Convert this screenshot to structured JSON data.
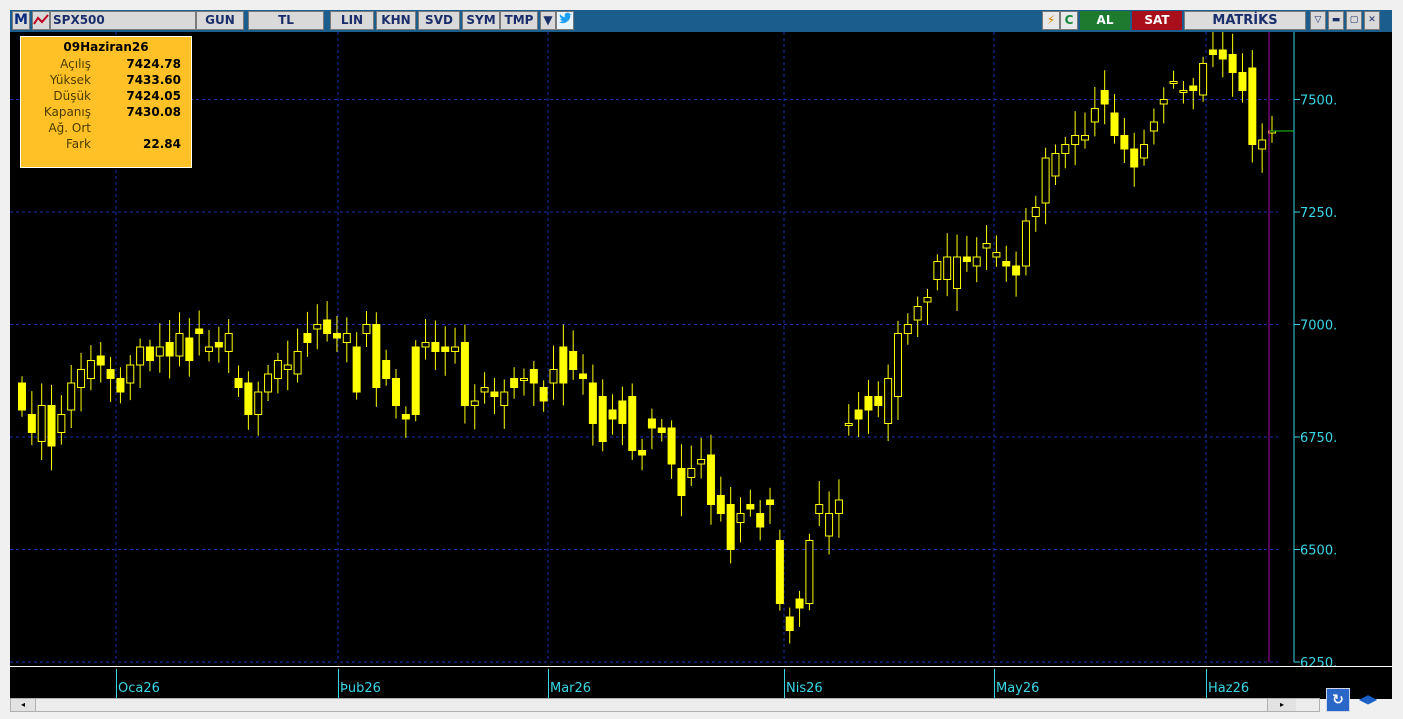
{
  "window": {
    "logo_letter": "M",
    "symbol": "SPX500",
    "period_button": "GUN",
    "currency_button": "TL",
    "toolbar_buttons": [
      "LIN",
      "KHN",
      "SVD",
      "SYM",
      "TMP"
    ],
    "buy_label": "AL",
    "sell_label": "SAT",
    "brand": "MATRİKS"
  },
  "info_box": {
    "date": "09Haziran26",
    "rows": [
      {
        "label": "Açılış",
        "value": "7424.78"
      },
      {
        "label": "Yüksek",
        "value": "7433.60"
      },
      {
        "label": "Düşük",
        "value": "7424.05"
      },
      {
        "label": "Kapanış",
        "value": "7430.08"
      },
      {
        "label": "Ağ. Ort",
        "value": ""
      },
      {
        "label": "Fark",
        "value": "22.84"
      }
    ]
  },
  "colors": {
    "background": "#000000",
    "candle": "#ffff00",
    "grid": "#1a2fb0",
    "axis": "#3bd6e6",
    "cursor_line": "#b000b0",
    "info_box": "#ffc125"
  },
  "chart_data": {
    "type": "candlestick",
    "ylim": [
      6250,
      7650
    ],
    "y_ticks": [
      6250,
      6500,
      6750,
      7000,
      7250,
      7500
    ],
    "y_tick_labels": [
      "6250.",
      "6500.",
      "6750.",
      "7000.",
      "7250.",
      "7500."
    ],
    "x_month_labels": [
      "Oca26",
      "Þub26",
      "Mar26",
      "Nis26",
      "May26",
      "Haz26"
    ],
    "last_close": 7430.08,
    "candles": [
      [
        6870,
        6810
      ],
      [
        6800,
        6760
      ],
      [
        6740,
        6820
      ],
      [
        6820,
        6730
      ],
      [
        6760,
        6800
      ],
      [
        6810,
        6870
      ],
      [
        6860,
        6900
      ],
      [
        6880,
        6920
      ],
      [
        6930,
        6910
      ],
      [
        6900,
        6880
      ],
      [
        6880,
        6850
      ],
      [
        6870,
        6910
      ],
      [
        6910,
        6950
      ],
      [
        6950,
        6920
      ],
      [
        6930,
        6950
      ],
      [
        6960,
        6930
      ],
      [
        6930,
        6980
      ],
      [
        6970,
        6920
      ],
      [
        6990,
        6980
      ],
      [
        6940,
        6950
      ],
      [
        6960,
        6950
      ],
      [
        6940,
        6980
      ],
      [
        6880,
        6860
      ],
      [
        6870,
        6800
      ],
      [
        6800,
        6850
      ],
      [
        6850,
        6890
      ],
      [
        6880,
        6920
      ],
      [
        6900,
        6910
      ],
      [
        6890,
        6940
      ],
      [
        6980,
        6960
      ],
      [
        6990,
        7000
      ],
      [
        7010,
        6980
      ],
      [
        6980,
        6970
      ],
      [
        6960,
        6980
      ],
      [
        6950,
        6850
      ],
      [
        6980,
        7000
      ],
      [
        7000,
        6860
      ],
      [
        6920,
        6880
      ],
      [
        6880,
        6820
      ],
      [
        6800,
        6790
      ],
      [
        6950,
        6800
      ],
      [
        6950,
        6960
      ],
      [
        6960,
        6940
      ],
      [
        6950,
        6940
      ],
      [
        6940,
        6950
      ],
      [
        6960,
        6820
      ],
      [
        6820,
        6830
      ],
      [
        6850,
        6860
      ],
      [
        6850,
        6840
      ],
      [
        6820,
        6850
      ],
      [
        6880,
        6860
      ],
      [
        6880,
        6880
      ],
      [
        6900,
        6870
      ],
      [
        6860,
        6830
      ],
      [
        6870,
        6900
      ],
      [
        6950,
        6870
      ],
      [
        6940,
        6900
      ],
      [
        6890,
        6880
      ],
      [
        6870,
        6780
      ],
      [
        6840,
        6740
      ],
      [
        6810,
        6790
      ],
      [
        6830,
        6780
      ],
      [
        6840,
        6720
      ],
      [
        6720,
        6710
      ],
      [
        6790,
        6770
      ],
      [
        6770,
        6760
      ],
      [
        6770,
        6690
      ],
      [
        6680,
        6620
      ],
      [
        6660,
        6680
      ],
      [
        6690,
        6700
      ],
      [
        6710,
        6600
      ],
      [
        6620,
        6580
      ],
      [
        6600,
        6500
      ],
      [
        6560,
        6580
      ],
      [
        6600,
        6590
      ],
      [
        6580,
        6550
      ],
      [
        6610,
        6600
      ],
      [
        6520,
        6380
      ],
      [
        6350,
        6320
      ],
      [
        6390,
        6370
      ],
      [
        6380,
        6520
      ],
      [
        6580,
        6600
      ],
      [
        6530,
        6580
      ],
      [
        6580,
        6610
      ],
      [
        6780,
        6780
      ],
      [
        6810,
        6790
      ],
      [
        6840,
        6810
      ],
      [
        6840,
        6820
      ],
      [
        6780,
        6880
      ],
      [
        6840,
        6980
      ],
      [
        6980,
        7000
      ],
      [
        7010,
        7040
      ],
      [
        7050,
        7060
      ],
      [
        7100,
        7140
      ],
      [
        7100,
        7150
      ],
      [
        7080,
        7150
      ],
      [
        7150,
        7140
      ],
      [
        7130,
        7150
      ],
      [
        7170,
        7180
      ],
      [
        7150,
        7160
      ],
      [
        7140,
        7130
      ],
      [
        7130,
        7110
      ],
      [
        7130,
        7230
      ],
      [
        7240,
        7260
      ],
      [
        7270,
        7370
      ],
      [
        7330,
        7380
      ],
      [
        7380,
        7400
      ],
      [
        7400,
        7420
      ],
      [
        7410,
        7420
      ],
      [
        7450,
        7480
      ],
      [
        7520,
        7490
      ],
      [
        7470,
        7420
      ],
      [
        7420,
        7390
      ],
      [
        7390,
        7350
      ],
      [
        7370,
        7400
      ],
      [
        7430,
        7450
      ],
      [
        7490,
        7500
      ],
      [
        7540,
        7540
      ],
      [
        7520,
        7520
      ],
      [
        7530,
        7520
      ],
      [
        7510,
        7580
      ],
      [
        7610,
        7600
      ],
      [
        7610,
        7590
      ],
      [
        7600,
        7560
      ],
      [
        7560,
        7520
      ],
      [
        7570,
        7400
      ],
      [
        7390,
        7410
      ],
      [
        7430,
        7430
      ]
    ]
  }
}
